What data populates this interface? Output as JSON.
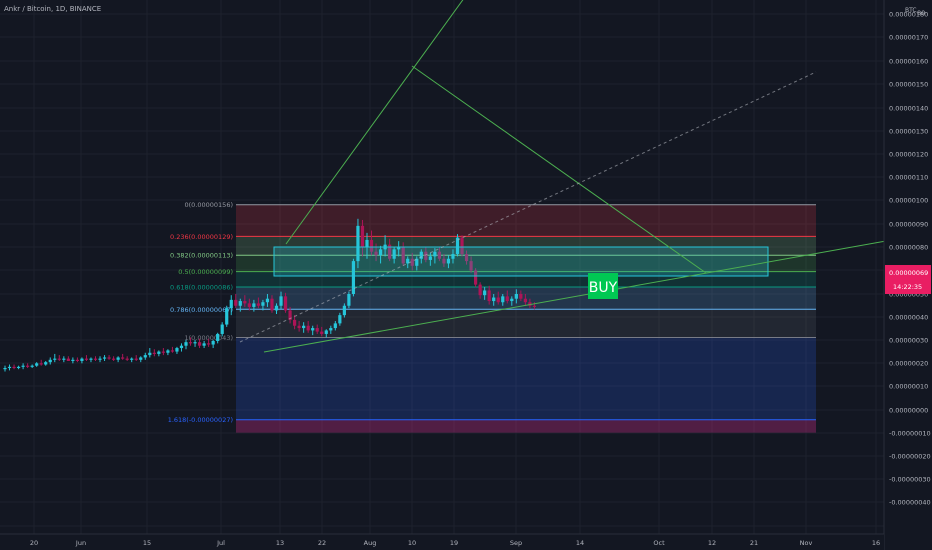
{
  "header": {
    "symbol": "Ankr / Bitcoin",
    "interval": "1D",
    "exchange": "BINANCE"
  },
  "axis": {
    "currency": "BTC",
    "currency_suffix": "80",
    "price_ticks": [
      "0.00000180",
      "0.00000170",
      "0.00000160",
      "0.00000150",
      "0.00000140",
      "0.00000130",
      "0.00000120",
      "0.00000110",
      "0.00000100",
      "0.00000090",
      "0.00000080",
      "0.00000069",
      "0.00000050",
      "0.00000040",
      "0.00000030",
      "0.00000020",
      "0.00000010",
      "0.00000000",
      "-0.00000010",
      "-0.00000020",
      "-0.00000030",
      "-0.00000040"
    ],
    "time_ticks": [
      "20",
      "Jun",
      "15",
      "Jul",
      "13",
      "22",
      "Aug",
      "10",
      "19",
      "Sep",
      "14",
      "Oct",
      "12",
      "21",
      "Nov",
      "16"
    ]
  },
  "last_price": {
    "value": "0.00000069",
    "countdown": "14:22:35",
    "color": "#e91e63"
  },
  "fib": {
    "levels": [
      {
        "ratio": 0,
        "label": "0(0.00000156)",
        "price": 1.56,
        "color": "#9598a1"
      },
      {
        "ratio": 0.236,
        "label": "0.236(0.00000129)",
        "price": 1.29,
        "color": "#f23645"
      },
      {
        "ratio": 0.382,
        "label": "0.382(0.00000113)",
        "price": 1.13,
        "color": "#81c784"
      },
      {
        "ratio": 0.5,
        "label": "0.5(0.00000099)",
        "price": 0.99,
        "color": "#4caf50"
      },
      {
        "ratio": 0.618,
        "label": "0.618(0.00000086)",
        "price": 0.86,
        "color": "#089981"
      },
      {
        "ratio": 0.786,
        "label": "0.786(0.00000067)",
        "price": 0.67,
        "color": "#64b5f6"
      },
      {
        "ratio": 1,
        "label": "1(0.00000043)",
        "price": 0.43,
        "color": "#787b86"
      },
      {
        "ratio": 1.618,
        "label": "1.618(-0.00000027)",
        "price": -0.27,
        "color": "#2962ff"
      }
    ],
    "extension_bottom": -0.38
  },
  "annotation": {
    "buy_label": "BUY",
    "buy_color": "#00c853"
  },
  "colors": {
    "background": "#131722",
    "up": "#26c6da",
    "down": "#ad1457",
    "trendline": "#4caf50",
    "zone": "#26c6da",
    "text": "#b2b5be"
  },
  "chart_data": {
    "type": "candlestick",
    "title": "Ankr / Bitcoin, 1D, BINANCE",
    "ylabel": "BTC",
    "ylim": [
      -4e-07,
      1.8e-06
    ],
    "price_unit": "1e-6 BTC",
    "candles": [
      {
        "o": 0.16,
        "h": 0.19,
        "l": 0.14,
        "c": 0.17
      },
      {
        "o": 0.17,
        "h": 0.2,
        "l": 0.15,
        "c": 0.18
      },
      {
        "o": 0.18,
        "h": 0.2,
        "l": 0.16,
        "c": 0.17
      },
      {
        "o": 0.17,
        "h": 0.19,
        "l": 0.16,
        "c": 0.18
      },
      {
        "o": 0.18,
        "h": 0.21,
        "l": 0.16,
        "c": 0.19
      },
      {
        "o": 0.19,
        "h": 0.21,
        "l": 0.17,
        "c": 0.18
      },
      {
        "o": 0.18,
        "h": 0.2,
        "l": 0.17,
        "c": 0.19
      },
      {
        "o": 0.19,
        "h": 0.22,
        "l": 0.18,
        "c": 0.21
      },
      {
        "o": 0.21,
        "h": 0.24,
        "l": 0.19,
        "c": 0.2
      },
      {
        "o": 0.2,
        "h": 0.23,
        "l": 0.19,
        "c": 0.22
      },
      {
        "o": 0.22,
        "h": 0.26,
        "l": 0.2,
        "c": 0.24
      },
      {
        "o": 0.24,
        "h": 0.29,
        "l": 0.22,
        "c": 0.25
      },
      {
        "o": 0.25,
        "h": 0.28,
        "l": 0.23,
        "c": 0.24
      },
      {
        "o": 0.24,
        "h": 0.27,
        "l": 0.22,
        "c": 0.25
      },
      {
        "o": 0.25,
        "h": 0.27,
        "l": 0.23,
        "c": 0.23
      },
      {
        "o": 0.23,
        "h": 0.26,
        "l": 0.21,
        "c": 0.24
      },
      {
        "o": 0.24,
        "h": 0.26,
        "l": 0.22,
        "c": 0.23
      },
      {
        "o": 0.23,
        "h": 0.26,
        "l": 0.21,
        "c": 0.25
      },
      {
        "o": 0.25,
        "h": 0.28,
        "l": 0.23,
        "c": 0.24
      },
      {
        "o": 0.24,
        "h": 0.26,
        "l": 0.22,
        "c": 0.25
      },
      {
        "o": 0.25,
        "h": 0.27,
        "l": 0.23,
        "c": 0.24
      },
      {
        "o": 0.24,
        "h": 0.27,
        "l": 0.22,
        "c": 0.25
      },
      {
        "o": 0.25,
        "h": 0.28,
        "l": 0.23,
        "c": 0.26
      },
      {
        "o": 0.26,
        "h": 0.28,
        "l": 0.24,
        "c": 0.25
      },
      {
        "o": 0.25,
        "h": 0.27,
        "l": 0.23,
        "c": 0.24
      },
      {
        "o": 0.24,
        "h": 0.27,
        "l": 0.22,
        "c": 0.26
      },
      {
        "o": 0.26,
        "h": 0.29,
        "l": 0.24,
        "c": 0.25
      },
      {
        "o": 0.25,
        "h": 0.27,
        "l": 0.23,
        "c": 0.24
      },
      {
        "o": 0.24,
        "h": 0.26,
        "l": 0.22,
        "c": 0.25
      },
      {
        "o": 0.25,
        "h": 0.28,
        "l": 0.23,
        "c": 0.24
      },
      {
        "o": 0.24,
        "h": 0.27,
        "l": 0.22,
        "c": 0.26
      },
      {
        "o": 0.26,
        "h": 0.3,
        "l": 0.24,
        "c": 0.28
      },
      {
        "o": 0.28,
        "h": 0.34,
        "l": 0.26,
        "c": 0.3
      },
      {
        "o": 0.3,
        "h": 0.33,
        "l": 0.27,
        "c": 0.29
      },
      {
        "o": 0.29,
        "h": 0.32,
        "l": 0.27,
        "c": 0.31
      },
      {
        "o": 0.31,
        "h": 0.34,
        "l": 0.28,
        "c": 0.3
      },
      {
        "o": 0.3,
        "h": 0.33,
        "l": 0.28,
        "c": 0.32
      },
      {
        "o": 0.32,
        "h": 0.35,
        "l": 0.3,
        "c": 0.31
      },
      {
        "o": 0.31,
        "h": 0.35,
        "l": 0.29,
        "c": 0.34
      },
      {
        "o": 0.34,
        "h": 0.38,
        "l": 0.31,
        "c": 0.36
      },
      {
        "o": 0.36,
        "h": 0.41,
        "l": 0.33,
        "c": 0.39
      },
      {
        "o": 0.39,
        "h": 0.43,
        "l": 0.36,
        "c": 0.38
      },
      {
        "o": 0.38,
        "h": 0.41,
        "l": 0.35,
        "c": 0.39
      },
      {
        "o": 0.39,
        "h": 0.42,
        "l": 0.34,
        "c": 0.36
      },
      {
        "o": 0.36,
        "h": 0.4,
        "l": 0.34,
        "c": 0.38
      },
      {
        "o": 0.38,
        "h": 0.42,
        "l": 0.35,
        "c": 0.37
      },
      {
        "o": 0.37,
        "h": 0.41,
        "l": 0.34,
        "c": 0.4
      },
      {
        "o": 0.4,
        "h": 0.47,
        "l": 0.38,
        "c": 0.46
      },
      {
        "o": 0.46,
        "h": 0.56,
        "l": 0.44,
        "c": 0.54
      },
      {
        "o": 0.54,
        "h": 0.7,
        "l": 0.52,
        "c": 0.68
      },
      {
        "o": 0.68,
        "h": 0.79,
        "l": 0.62,
        "c": 0.75
      },
      {
        "o": 0.75,
        "h": 0.8,
        "l": 0.68,
        "c": 0.7
      },
      {
        "o": 0.7,
        "h": 0.76,
        "l": 0.65,
        "c": 0.74
      },
      {
        "o": 0.74,
        "h": 0.79,
        "l": 0.69,
        "c": 0.72
      },
      {
        "o": 0.72,
        "h": 0.76,
        "l": 0.66,
        "c": 0.69
      },
      {
        "o": 0.69,
        "h": 0.75,
        "l": 0.65,
        "c": 0.72
      },
      {
        "o": 0.72,
        "h": 0.77,
        "l": 0.68,
        "c": 0.7
      },
      {
        "o": 0.7,
        "h": 0.75,
        "l": 0.66,
        "c": 0.73
      },
      {
        "o": 0.73,
        "h": 0.8,
        "l": 0.69,
        "c": 0.76
      },
      {
        "o": 0.76,
        "h": 0.79,
        "l": 0.64,
        "c": 0.66
      },
      {
        "o": 0.66,
        "h": 0.72,
        "l": 0.63,
        "c": 0.7
      },
      {
        "o": 0.7,
        "h": 0.82,
        "l": 0.67,
        "c": 0.78
      },
      {
        "o": 0.78,
        "h": 0.81,
        "l": 0.64,
        "c": 0.66
      },
      {
        "o": 0.66,
        "h": 0.69,
        "l": 0.55,
        "c": 0.58
      },
      {
        "o": 0.58,
        "h": 0.62,
        "l": 0.5,
        "c": 0.53
      },
      {
        "o": 0.53,
        "h": 0.57,
        "l": 0.48,
        "c": 0.51
      },
      {
        "o": 0.51,
        "h": 0.56,
        "l": 0.47,
        "c": 0.53
      },
      {
        "o": 0.53,
        "h": 0.57,
        "l": 0.47,
        "c": 0.49
      },
      {
        "o": 0.49,
        "h": 0.53,
        "l": 0.45,
        "c": 0.51
      },
      {
        "o": 0.51,
        "h": 0.54,
        "l": 0.46,
        "c": 0.48
      },
      {
        "o": 0.48,
        "h": 0.52,
        "l": 0.44,
        "c": 0.46
      },
      {
        "o": 0.46,
        "h": 0.5,
        "l": 0.43,
        "c": 0.49
      },
      {
        "o": 0.49,
        "h": 0.53,
        "l": 0.46,
        "c": 0.51
      },
      {
        "o": 0.51,
        "h": 0.57,
        "l": 0.49,
        "c": 0.55
      },
      {
        "o": 0.55,
        "h": 0.64,
        "l": 0.53,
        "c": 0.62
      },
      {
        "o": 0.62,
        "h": 0.72,
        "l": 0.6,
        "c": 0.7
      },
      {
        "o": 0.7,
        "h": 0.82,
        "l": 0.68,
        "c": 0.8
      },
      {
        "o": 0.8,
        "h": 1.1,
        "l": 0.78,
        "c": 1.08
      },
      {
        "o": 1.08,
        "h": 1.44,
        "l": 1.02,
        "c": 1.38
      },
      {
        "o": 1.38,
        "h": 1.43,
        "l": 1.12,
        "c": 1.2
      },
      {
        "o": 1.2,
        "h": 1.32,
        "l": 1.1,
        "c": 1.26
      },
      {
        "o": 1.26,
        "h": 1.34,
        "l": 1.13,
        "c": 1.16
      },
      {
        "o": 1.16,
        "h": 1.23,
        "l": 1.08,
        "c": 1.13
      },
      {
        "o": 1.13,
        "h": 1.21,
        "l": 1.06,
        "c": 1.18
      },
      {
        "o": 1.18,
        "h": 1.3,
        "l": 1.12,
        "c": 1.22
      },
      {
        "o": 1.22,
        "h": 1.27,
        "l": 1.08,
        "c": 1.1
      },
      {
        "o": 1.1,
        "h": 1.2,
        "l": 1.06,
        "c": 1.18
      },
      {
        "o": 1.18,
        "h": 1.25,
        "l": 1.12,
        "c": 1.2
      },
      {
        "o": 1.2,
        "h": 1.24,
        "l": 1.04,
        "c": 1.06
      },
      {
        "o": 1.06,
        "h": 1.12,
        "l": 1.02,
        "c": 1.1
      },
      {
        "o": 1.1,
        "h": 1.15,
        "l": 1.0,
        "c": 1.04
      },
      {
        "o": 1.04,
        "h": 1.12,
        "l": 1.0,
        "c": 1.1
      },
      {
        "o": 1.1,
        "h": 1.18,
        "l": 1.06,
        "c": 1.16
      },
      {
        "o": 1.16,
        "h": 1.2,
        "l": 1.07,
        "c": 1.09
      },
      {
        "o": 1.09,
        "h": 1.15,
        "l": 1.04,
        "c": 1.12
      },
      {
        "o": 1.12,
        "h": 1.19,
        "l": 1.06,
        "c": 1.16
      },
      {
        "o": 1.16,
        "h": 1.2,
        "l": 1.08,
        "c": 1.1
      },
      {
        "o": 1.1,
        "h": 1.14,
        "l": 1.03,
        "c": 1.06
      },
      {
        "o": 1.06,
        "h": 1.13,
        "l": 1.02,
        "c": 1.1
      },
      {
        "o": 1.1,
        "h": 1.18,
        "l": 1.06,
        "c": 1.14
      },
      {
        "o": 1.14,
        "h": 1.31,
        "l": 1.12,
        "c": 1.28
      },
      {
        "o": 1.28,
        "h": 1.3,
        "l": 1.12,
        "c": 1.14
      },
      {
        "o": 1.14,
        "h": 1.17,
        "l": 1.05,
        "c": 1.08
      },
      {
        "o": 1.08,
        "h": 1.12,
        "l": 0.98,
        "c": 1.0
      },
      {
        "o": 1.0,
        "h": 1.02,
        "l": 0.86,
        "c": 0.88
      },
      {
        "o": 0.88,
        "h": 0.9,
        "l": 0.76,
        "c": 0.79
      },
      {
        "o": 0.79,
        "h": 0.86,
        "l": 0.75,
        "c": 0.83
      },
      {
        "o": 0.83,
        "h": 0.87,
        "l": 0.71,
        "c": 0.74
      },
      {
        "o": 0.74,
        "h": 0.8,
        "l": 0.7,
        "c": 0.77
      },
      {
        "o": 0.77,
        "h": 0.82,
        "l": 0.71,
        "c": 0.73
      },
      {
        "o": 0.73,
        "h": 0.8,
        "l": 0.7,
        "c": 0.78
      },
      {
        "o": 0.78,
        "h": 0.83,
        "l": 0.72,
        "c": 0.74
      },
      {
        "o": 0.74,
        "h": 0.78,
        "l": 0.7,
        "c": 0.76
      },
      {
        "o": 0.76,
        "h": 0.84,
        "l": 0.72,
        "c": 0.8
      },
      {
        "o": 0.8,
        "h": 0.83,
        "l": 0.74,
        "c": 0.76
      },
      {
        "o": 0.76,
        "h": 0.8,
        "l": 0.7,
        "c": 0.73
      },
      {
        "o": 0.73,
        "h": 0.76,
        "l": 0.68,
        "c": 0.7
      },
      {
        "o": 0.7,
        "h": 0.73,
        "l": 0.67,
        "c": 0.69
      }
    ]
  }
}
